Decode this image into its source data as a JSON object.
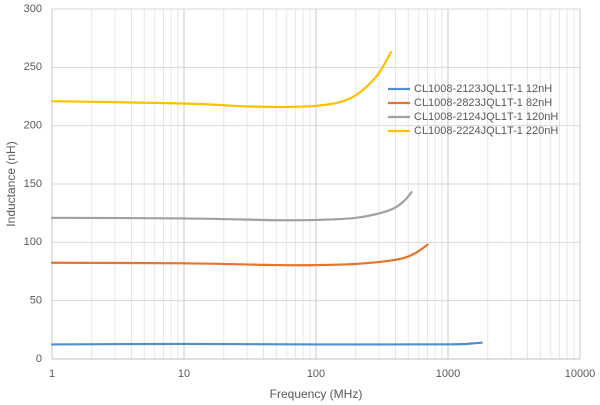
{
  "chart_data": {
    "type": "line",
    "x_label": "Frequency (MHz)",
    "y_label": "Inductance (nH)",
    "xscale": "log",
    "xlim": [
      1,
      10000
    ],
    "xticks": [
      1,
      10,
      100,
      1000,
      10000
    ],
    "ylim": [
      0,
      300
    ],
    "yticks": [
      0,
      50,
      100,
      150,
      200,
      250,
      300
    ],
    "grid": true,
    "minor_grid": true,
    "legend": "upper right",
    "series": [
      {
        "name": "CL1008-2123JQL1T-1 12nH",
        "color": "#4f8fcc",
        "x": [
          1,
          10,
          100,
          1000,
          1500,
          1800
        ],
        "values": [
          12.5,
          12.9,
          12.5,
          12.6,
          13.3,
          14
        ]
      },
      {
        "name": "CL1008-2823JQL1T-1 82nH",
        "color": "#e8732b",
        "x": [
          1,
          10,
          50,
          100,
          200,
          400,
          550,
          700
        ],
        "values": [
          82.5,
          82,
          80.5,
          80.5,
          81.5,
          85,
          90,
          98
        ]
      },
      {
        "name": "CL1008-2124JQL1T-1 120nH",
        "color": "#a0a0a0",
        "x": [
          1,
          10,
          50,
          100,
          200,
          350,
          450,
          530
        ],
        "values": [
          121,
          120.5,
          119,
          119.2,
          121,
          127,
          134,
          143
        ]
      },
      {
        "name": "CL1008-2224JQL1T-1 220nH",
        "color": "#ffc000",
        "x": [
          1,
          10,
          30,
          60,
          100,
          150,
          200,
          250,
          300,
          370
        ],
        "values": [
          221,
          219,
          216.5,
          216,
          217,
          220,
          226,
          235,
          245,
          263
        ]
      }
    ]
  }
}
